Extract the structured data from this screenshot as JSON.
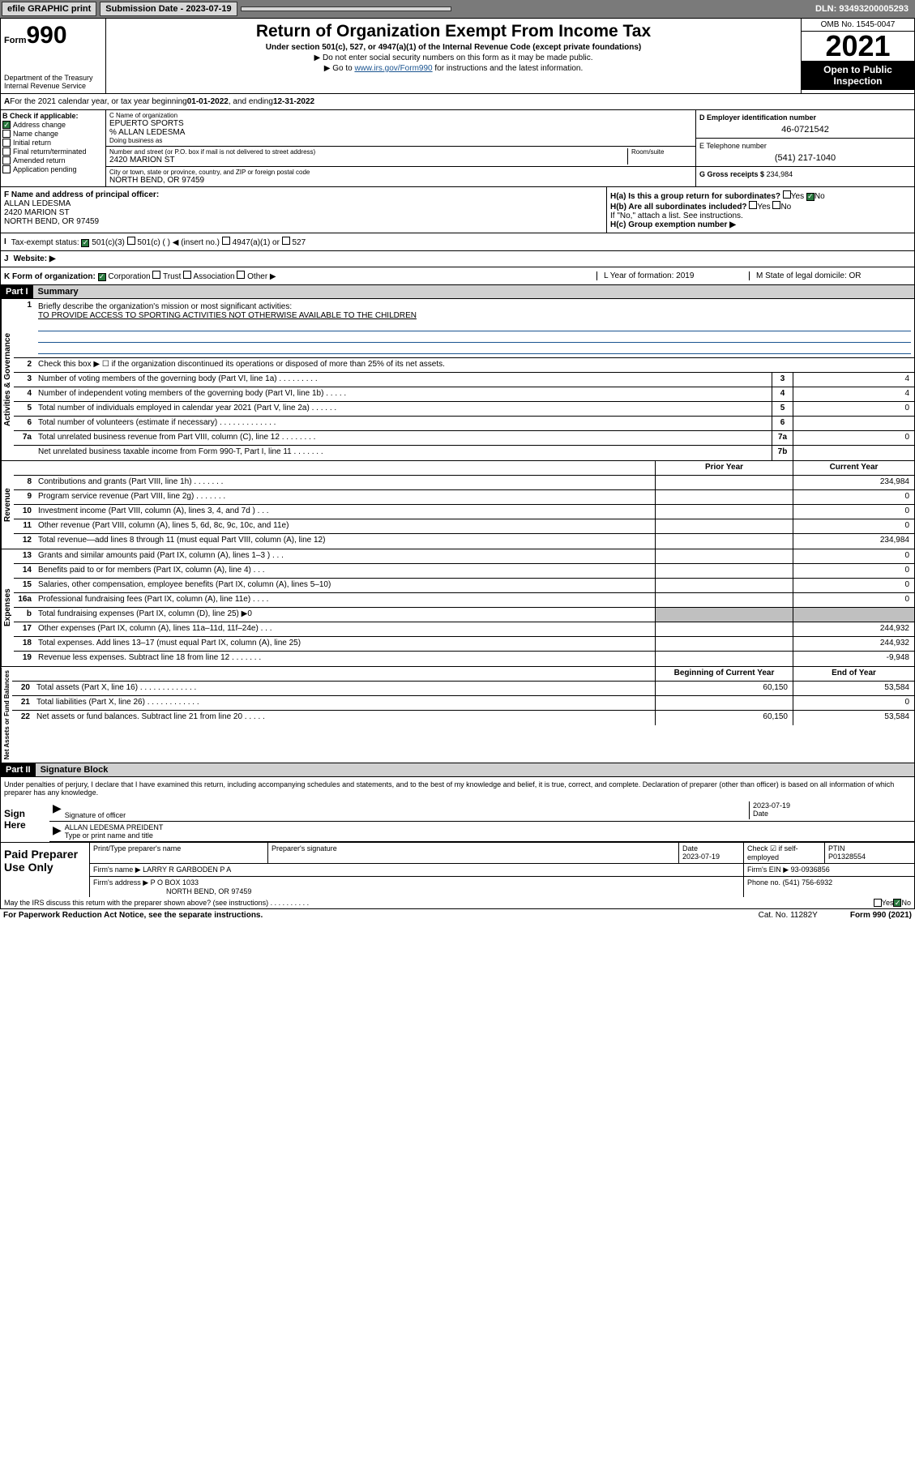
{
  "topbar": {
    "efile": "efile GRAPHIC print",
    "submission_label": "Submission Date - 2023-07-19",
    "dln": "DLN: 93493200005293"
  },
  "header": {
    "form_small": "Form",
    "form_num": "990",
    "dept": "Department of the Treasury\nInternal Revenue Service",
    "title": "Return of Organization Exempt From Income Tax",
    "subtitle": "Under section 501(c), 527, or 4947(a)(1) of the Internal Revenue Code (except private foundations)",
    "note1": "▶ Do not enter social security numbers on this form as it may be made public.",
    "note2_pre": "▶ Go to ",
    "note2_link": "www.irs.gov/Form990",
    "note2_post": " for instructions and the latest information.",
    "omb": "OMB No. 1545-0047",
    "year": "2021",
    "inspect": "Open to Public Inspection"
  },
  "period": {
    "text_a": "For the 2021 calendar year, or tax year beginning ",
    "begin": "01-01-2022",
    "text_b": " , and ending ",
    "end": "12-31-2022"
  },
  "sectionB": {
    "label": "B Check if applicable:",
    "opts": [
      {
        "label": "Address change",
        "checked": true
      },
      {
        "label": "Name change",
        "checked": false
      },
      {
        "label": "Initial return",
        "checked": false
      },
      {
        "label": "Final return/terminated",
        "checked": false
      },
      {
        "label": "Amended return",
        "checked": false
      },
      {
        "label": "Application pending",
        "checked": false
      }
    ],
    "c_label": "C Name of organization",
    "c_name": "EPUERTO SPORTS",
    "care_of_label": "% ALLAN LEDESMA",
    "dba_label": "Doing business as",
    "addr_label": "Number and street (or P.O. box if mail is not delivered to street address)",
    "room_label": "Room/suite",
    "addr": "2420 MARION ST",
    "city_label": "City or town, state or province, country, and ZIP or foreign postal code",
    "city": "NORTH BEND, OR  97459",
    "d_label": "D Employer identification number",
    "d_val": "46-0721542",
    "e_label": "E Telephone number",
    "e_val": "(541) 217-1040",
    "g_label": "G Gross receipts $ ",
    "g_val": "234,984"
  },
  "fg": {
    "f_label": "F Name and address of principal officer:",
    "f_name": "ALLAN LEDESMA",
    "f_addr1": "2420 MARION ST",
    "f_addr2": "NORTH BEND, OR  97459",
    "ha": "H(a)  Is this a group return for subordinates?",
    "ha_yes": "Yes",
    "ha_no": "No",
    "hb": "H(b)  Are all subordinates included?",
    "hb_yes": "Yes",
    "hb_no": "No",
    "hb_note": "If \"No,\" attach a list. See instructions.",
    "hc": "H(c)  Group exemption number ▶"
  },
  "taxex": {
    "i": "I",
    "label": "Tax-exempt status:",
    "c3": "501(c)(3)",
    "c": "501(c) (  ) ◀ (insert no.)",
    "a1": "4947(a)(1) or",
    "s527": "527",
    "j": "J",
    "web": "Website: ▶"
  },
  "korg": {
    "k": "K Form of organization:",
    "corp": "Corporation",
    "trust": "Trust",
    "assoc": "Association",
    "other": "Other ▶",
    "l": "L Year of formation: 2019",
    "m": "M State of legal domicile: OR"
  },
  "part1": {
    "hdr": "Part I",
    "title": "Summary",
    "q1": "Briefly describe the organization's mission or most significant activities:",
    "q1_val": "TO PROVIDE ACCESS TO SPORTING ACTIVITIES NOT OTHERWISE AVAILABLE TO THE CHILDREN",
    "q2": "Check this box ▶ ☐  if the organization discontinued its operations or disposed of more than 25% of its net assets.",
    "rows_gov": [
      {
        "n": "3",
        "d": "Number of voting members of the governing body (Part VI, line 1a)   .   .   .   .   .   .   .   .   .",
        "box": "3",
        "v": "4"
      },
      {
        "n": "4",
        "d": "Number of independent voting members of the governing body (Part VI, line 1b)  .   .   .   .   .",
        "box": "4",
        "v": "4"
      },
      {
        "n": "5",
        "d": "Total number of individuals employed in calendar year 2021 (Part V, line 2a)  .   .   .   .   .   .",
        "box": "5",
        "v": "0"
      },
      {
        "n": "6",
        "d": "Total number of volunteers (estimate if necessary)  .   .   .   .   .   .   .   .   .   .   .   .   .",
        "box": "6",
        "v": ""
      },
      {
        "n": "7a",
        "d": "Total unrelated business revenue from Part VIII, column (C), line 12   .   .   .   .   .   .   .   .",
        "box": "7a",
        "v": "0"
      },
      {
        "n": "",
        "d": "Net unrelated business taxable income from Form 990-T, Part I, line 11  .   .   .   .   .   .   .",
        "box": "7b",
        "v": ""
      }
    ],
    "col_prior": "Prior Year",
    "col_curr": "Current Year",
    "rows_rev": [
      {
        "n": "8",
        "d": "Contributions and grants (Part VIII, line 1h)   .   .   .   .   .   .   .",
        "p": "",
        "c": "234,984"
      },
      {
        "n": "9",
        "d": "Program service revenue (Part VIII, line 2g)   .   .   .   .   .   .   .",
        "p": "",
        "c": "0"
      },
      {
        "n": "10",
        "d": "Investment income (Part VIII, column (A), lines 3, 4, and 7d )  .   .   .",
        "p": "",
        "c": "0"
      },
      {
        "n": "11",
        "d": "Other revenue (Part VIII, column (A), lines 5, 6d, 8c, 9c, 10c, and 11e)",
        "p": "",
        "c": "0"
      },
      {
        "n": "12",
        "d": "Total revenue—add lines 8 through 11 (must equal Part VIII, column (A), line 12)",
        "p": "",
        "c": "234,984"
      }
    ],
    "rows_exp": [
      {
        "n": "13",
        "d": "Grants and similar amounts paid (Part IX, column (A), lines 1–3 )  .   .   .",
        "p": "",
        "c": "0"
      },
      {
        "n": "14",
        "d": "Benefits paid to or for members (Part IX, column (A), line 4)  .   .   .",
        "p": "",
        "c": "0"
      },
      {
        "n": "15",
        "d": "Salaries, other compensation, employee benefits (Part IX, column (A), lines 5–10)",
        "p": "",
        "c": "0"
      },
      {
        "n": "16a",
        "d": "Professional fundraising fees (Part IX, column (A), line 11e)  .   .   .   .",
        "p": "",
        "c": "0"
      },
      {
        "n": "b",
        "d": "Total fundraising expenses (Part IX, column (D), line 25) ▶0",
        "p": "gray",
        "c": "gray"
      },
      {
        "n": "17",
        "d": "Other expenses (Part IX, column (A), lines 11a–11d, 11f–24e) .   .   .",
        "p": "",
        "c": "244,932"
      },
      {
        "n": "18",
        "d": "Total expenses. Add lines 13–17 (must equal Part IX, column (A), line 25)",
        "p": "",
        "c": "244,932"
      },
      {
        "n": "19",
        "d": "Revenue less expenses. Subtract line 18 from line 12   .   .   .   .   .   .   .",
        "p": "",
        "c": "-9,948"
      }
    ],
    "col_beg": "Beginning of Current Year",
    "col_end": "End of Year",
    "rows_net": [
      {
        "n": "20",
        "d": "Total assets (Part X, line 16)  .   .   .   .   .   .   .   .   .   .   .   .   .",
        "p": "60,150",
        "c": "53,584"
      },
      {
        "n": "21",
        "d": "Total liabilities (Part X, line 26)  .   .   .   .   .   .   .   .   .   .   .   .",
        "p": "",
        "c": "0"
      },
      {
        "n": "22",
        "d": "Net assets or fund balances. Subtract line 21 from line 20  .   .   .   .   .",
        "p": "60,150",
        "c": "53,584"
      }
    ],
    "vert_gov": "Activities & Governance",
    "vert_rev": "Revenue",
    "vert_exp": "Expenses",
    "vert_net": "Net Assets or Fund Balances"
  },
  "part2": {
    "hdr": "Part II",
    "title": "Signature Block",
    "decl": "Under penalties of perjury, I declare that I have examined this return, including accompanying schedules and statements, and to the best of my knowledge and belief, it is true, correct, and complete. Declaration of preparer (other than officer) is based on all information of which preparer has any knowledge.",
    "sign_here": "Sign Here",
    "sig_off": "Signature of officer",
    "sig_date": "Date",
    "sig_date_val": "2023-07-19",
    "sig_name": "ALLAN LEDESMA  PREIDENT",
    "sig_name_label": "Type or print name and title",
    "paid": "Paid Preparer Use Only",
    "pt_name_label": "Print/Type preparer's name",
    "pt_sig_label": "Preparer's signature",
    "pt_date_label": "Date",
    "pt_date": "2023-07-19",
    "pt_check": "Check ☑ if self-employed",
    "ptin_label": "PTIN",
    "ptin": "P01328554",
    "firm_name_label": "Firm's name    ▶",
    "firm_name": "LARRY R GARBODEN P A",
    "firm_ein_label": "Firm's EIN ▶",
    "firm_ein": "93-0936856",
    "firm_addr_label": "Firm's address ▶",
    "firm_addr1": "P O BOX 1033",
    "firm_addr2": "NORTH BEND, OR  97459",
    "phone_label": "Phone no.",
    "phone": "(541) 756-6932",
    "may_irs": "May the IRS discuss this return with the preparer shown above? (see instructions)   .   .   .   .   .   .   .   .   .   .",
    "may_yes": "Yes",
    "may_no": "No"
  },
  "footer": {
    "notice": "For Paperwork Reduction Act Notice, see the separate instructions.",
    "cat": "Cat. No. 11282Y",
    "form": "Form 990 (2021)"
  }
}
